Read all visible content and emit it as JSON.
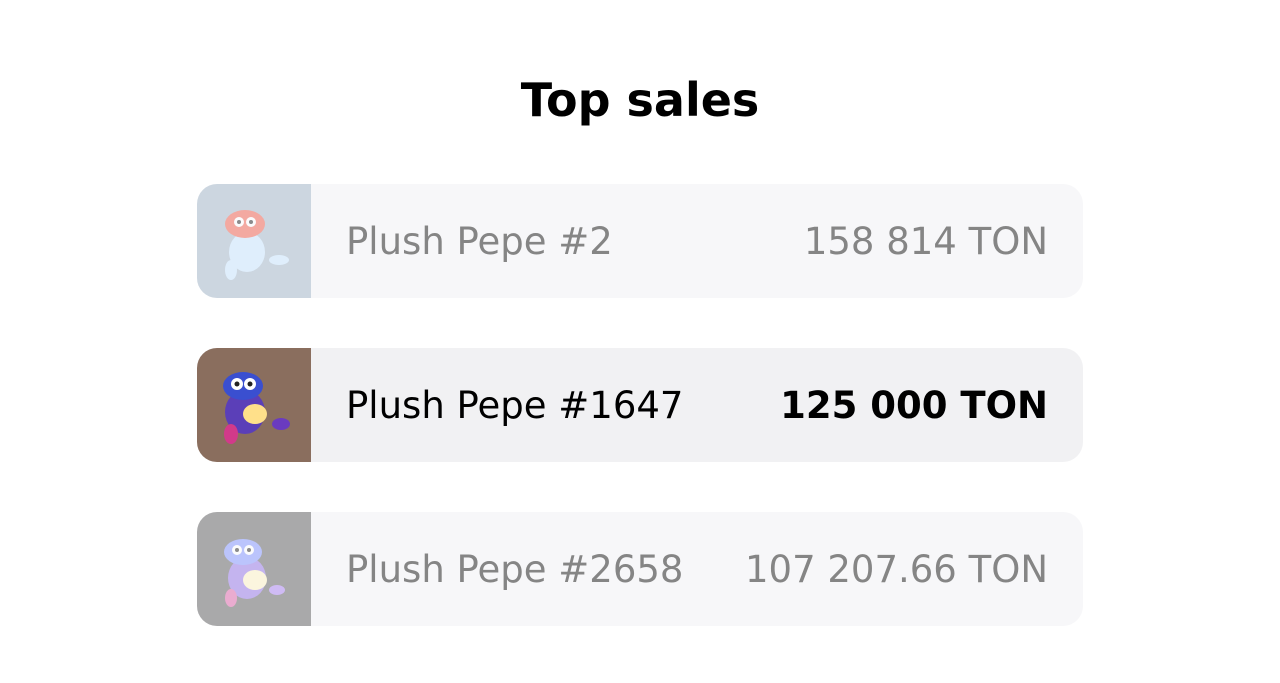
{
  "header": {
    "title": "Top sales"
  },
  "items": [
    {
      "name": "Plush Pepe #2",
      "price": "158 814 TON"
    },
    {
      "name": "Plush Pepe #1647",
      "price": "125 000 TON"
    },
    {
      "name": "Plush Pepe #2658",
      "price": "107 207.66 TON"
    }
  ]
}
